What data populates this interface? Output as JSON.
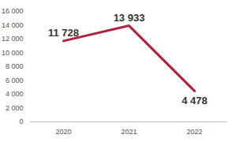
{
  "chart_data": {
    "type": "line",
    "categories": [
      "2020",
      "2021",
      "2022"
    ],
    "values": [
      11728,
      13933,
      4478
    ],
    "value_labels": [
      "11 728",
      "13 933",
      "4 478"
    ],
    "data_labels": true,
    "color": "#b0203f",
    "ylim": [
      0,
      16000
    ],
    "yticks": [
      0,
      {
        "value": 2000,
        "label": "2 000"
      },
      {
        "value": 4000,
        "label": "4 000"
      },
      {
        "value": 6000,
        "label": "6 000"
      },
      {
        "value": 8000,
        "label": "8 000"
      },
      {
        "value": 10000,
        "label": "10 000"
      },
      {
        "value": 12000,
        "label": "12 000"
      },
      {
        "value": 14000,
        "label": "14 000"
      },
      {
        "value": 16000,
        "label": "16 000"
      }
    ],
    "grid": false
  }
}
